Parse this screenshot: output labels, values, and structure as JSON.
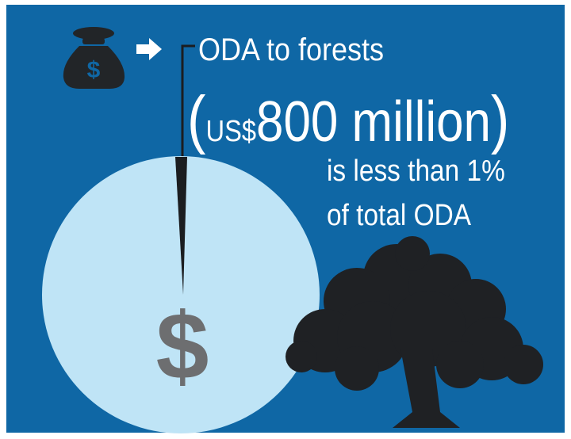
{
  "headline": "ODA to forests",
  "amount": {
    "open": "(",
    "currency": "US$",
    "figure": "800 million",
    "close": ")"
  },
  "statement": [
    "is less than 1%",
    "of total ODA"
  ],
  "bag_symbol": "$",
  "circle_symbol": "$"
}
